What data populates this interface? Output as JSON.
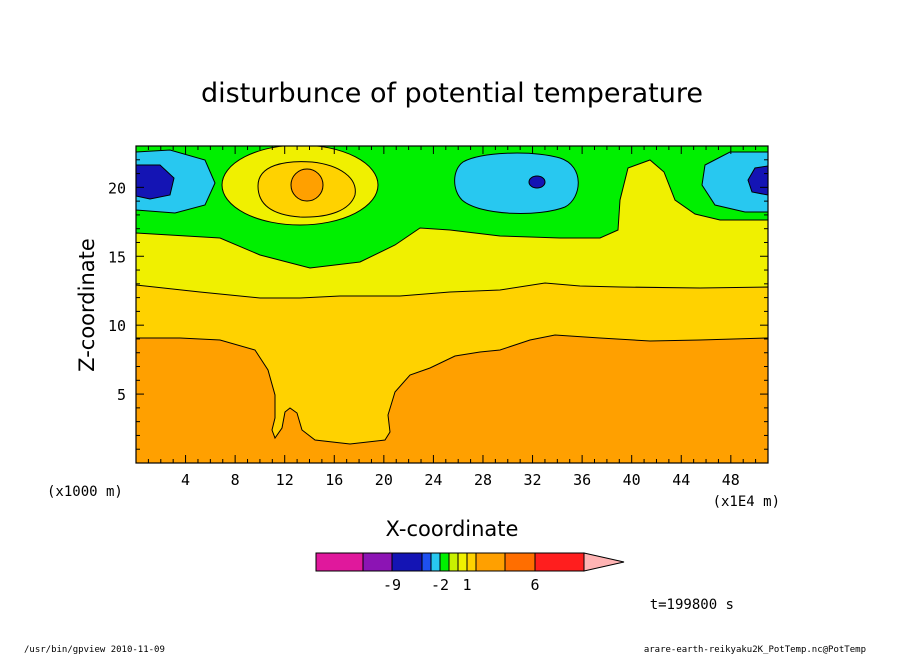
{
  "chart_data": {
    "type": "heatmap",
    "subtype": "filled-contour",
    "title": "disturbunce of potential temperature",
    "xlabel": "X-coordinate",
    "ylabel": "Z-coordinate",
    "x_unit_left": "(x1000 m)",
    "x_unit_right": "(x1E4 m)",
    "xlim": [
      0,
      51
    ],
    "ylim": [
      0,
      23
    ],
    "xticks": [
      4,
      8,
      12,
      16,
      20,
      24,
      28,
      32,
      36,
      40,
      44,
      48
    ],
    "yticks": [
      5,
      10,
      15,
      20
    ],
    "time_label": "t=199800 s",
    "footer_left": "/usr/bin/gpview   2010-11-09",
    "footer_right": "arare-earth-reikyaku2K_PotTemp.nc@PotTemp",
    "colorbar": {
      "tick_labels": [
        {
          "text": "-9",
          "at_boundary": 2
        },
        {
          "text": "-2",
          "at_boundary": 5
        },
        {
          "text": "1",
          "at_boundary": 8
        },
        {
          "text": "6",
          "at_boundary": 11
        }
      ],
      "colors": [
        "#e0189c",
        "#8c14b4",
        "#1414b4",
        "#1e50f0",
        "#28c8f0",
        "#00f000",
        "#c8f000",
        "#f0f000",
        "#ffd200",
        "#ffa000",
        "#ff6e00",
        "#ff1e1e",
        "#ff7878",
        "#ffb4b4"
      ]
    },
    "regions": [
      {
        "name": "band-orange",
        "color": "#ffa000"
      },
      {
        "name": "band-gold",
        "color": "#ffd200"
      },
      {
        "name": "band-yellow",
        "color": "#f0f000"
      },
      {
        "name": "band-green",
        "color": "#00f000"
      },
      {
        "name": "cold-cyan",
        "color": "#28c8f0"
      },
      {
        "name": "cold-blue",
        "color": "#1414b4"
      },
      {
        "name": "warm-core",
        "color": "#ffa000"
      }
    ]
  }
}
